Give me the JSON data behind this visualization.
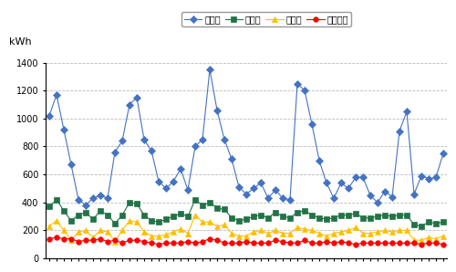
{
  "ylabel": "kWh",
  "ylim": [
    0,
    1400
  ],
  "yticks": [
    0,
    200,
    400,
    600,
    800,
    1000,
    1200,
    1400
  ],
  "legend_labels": [
    "買電量",
    "発電量",
    "売電量",
    "自家消費"
  ],
  "line_colors": [
    "#4472C4",
    "#217346",
    "#FFC000",
    "#FF0000"
  ],
  "markers": [
    "D",
    "s",
    "^",
    "o"
  ],
  "marker_sizes": [
    4,
    4,
    4,
    4
  ],
  "background_color": "#FFFFFF",
  "grid_color": "#BBBBBB",
  "bought": [
    1020,
    1170,
    920,
    670,
    420,
    380,
    430,
    450,
    430,
    760,
    840,
    1100,
    1150,
    850,
    770,
    550,
    500,
    550,
    640,
    490,
    800,
    850,
    1350,
    1060,
    850,
    710,
    510,
    460,
    500,
    540,
    430,
    490,
    430,
    420,
    1250,
    1200,
    960,
    700,
    540,
    430,
    540,
    500,
    580,
    580,
    450,
    400,
    480,
    440,
    910,
    1050,
    460,
    590,
    570,
    580,
    750
  ],
  "generated": [
    370,
    420,
    340,
    270,
    310,
    330,
    280,
    340,
    310,
    250,
    310,
    400,
    390,
    310,
    270,
    260,
    280,
    300,
    320,
    300,
    420,
    380,
    400,
    360,
    350,
    290,
    270,
    280,
    300,
    310,
    290,
    330,
    300,
    290,
    330,
    340,
    310,
    290,
    280,
    290,
    310,
    310,
    320,
    290,
    290,
    300,
    310,
    300,
    310,
    310,
    240,
    230,
    260,
    250,
    260
  ],
  "sold": [
    230,
    270,
    200,
    130,
    190,
    200,
    150,
    200,
    190,
    120,
    200,
    270,
    260,
    190,
    160,
    160,
    170,
    190,
    210,
    180,
    310,
    260,
    260,
    230,
    240,
    180,
    160,
    160,
    190,
    200,
    180,
    200,
    180,
    180,
    220,
    210,
    200,
    180,
    160,
    180,
    190,
    200,
    220,
    180,
    180,
    190,
    200,
    190,
    200,
    200,
    130,
    130,
    150,
    140,
    160
  ],
  "self_consumed": [
    140,
    150,
    140,
    140,
    120,
    130,
    130,
    140,
    120,
    130,
    110,
    130,
    130,
    120,
    110,
    100,
    110,
    110,
    110,
    120,
    110,
    120,
    140,
    130,
    110,
    110,
    110,
    120,
    110,
    110,
    110,
    130,
    120,
    110,
    110,
    130,
    110,
    110,
    120,
    110,
    120,
    110,
    100,
    110,
    110,
    110,
    110,
    110,
    110,
    110,
    110,
    100,
    110,
    110,
    100
  ]
}
